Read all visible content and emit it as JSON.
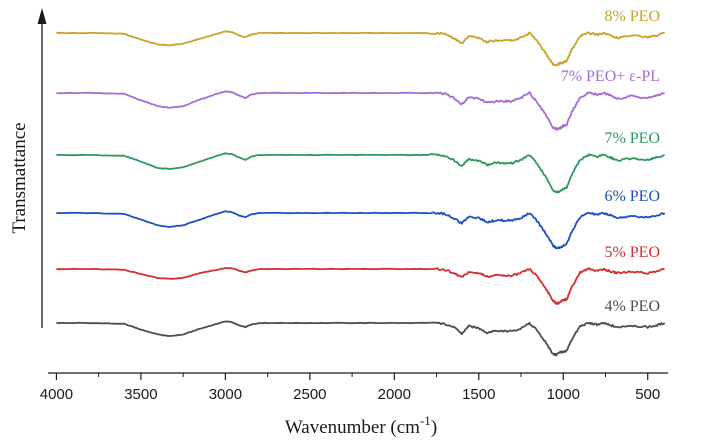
{
  "chart_data": {
    "type": "line",
    "xlabel": "Wavenumber (cm",
    "xlabel_sup": "-1",
    "xlabel_close": ")",
    "ylabel": "Transmattance",
    "x_reversed": true,
    "xlim": [
      4050,
      380
    ],
    "x_ticks": [
      4000,
      3500,
      3000,
      2500,
      2000,
      1500,
      1000,
      500
    ],
    "x_tick_labels": [
      "4000",
      "3500",
      "3000",
      "2500",
      "2000",
      "1500",
      "1000",
      "500"
    ],
    "y_ticks_shown": false,
    "grid": false,
    "legend": "inline labels at right end of each curve",
    "x": [
      4000,
      3800,
      3600,
      3500,
      3400,
      3330,
      3250,
      3150,
      3050,
      3000,
      2960,
      2920,
      2880,
      2850,
      2800,
      2700,
      2500,
      2300,
      2100,
      1900,
      1750,
      1700,
      1650,
      1600,
      1560,
      1500,
      1450,
      1400,
      1350,
      1300,
      1250,
      1200,
      1150,
      1100,
      1060,
      1040,
      1020,
      1000,
      980,
      950,
      900,
      850,
      800,
      760,
      720,
      680,
      600,
      500,
      450,
      400
    ],
    "series": [
      {
        "name": "4% PEO",
        "color": "#4d4d4d",
        "values": [
          0,
          0,
          -0.1,
          -0.8,
          -1.4,
          -1.6,
          -1.4,
          -0.7,
          -0.1,
          0.2,
          0.1,
          -0.3,
          -0.5,
          -0.2,
          0,
          0,
          0,
          0,
          0,
          0,
          0,
          -0.1,
          -0.5,
          -1.3,
          -0.4,
          -0.6,
          -1.2,
          -0.9,
          -1.0,
          -1.0,
          -0.7,
          0,
          -1.0,
          -2.5,
          -3.8,
          -3.9,
          -3.5,
          -3.6,
          -3.4,
          -2.0,
          -0.4,
          0,
          -0.2,
          0,
          -0.3,
          -0.5,
          -0.3,
          -0.5,
          -0.3,
          0
        ]
      },
      {
        "name": "5% PEO",
        "color": "#d42e2e",
        "values": [
          0,
          0,
          -0.1,
          -0.6,
          -1.1,
          -1.2,
          -1.1,
          -0.5,
          -0.1,
          0.1,
          0.1,
          -0.2,
          -0.4,
          -0.2,
          0,
          0,
          0,
          0,
          0,
          0,
          0,
          -0.1,
          -0.5,
          -1.0,
          -0.4,
          -0.5,
          -0.9,
          -0.8,
          -0.8,
          -0.8,
          -0.5,
          0,
          -1.0,
          -2.5,
          -3.9,
          -4.2,
          -4.1,
          -3.8,
          -3.7,
          -2.2,
          -0.4,
          0,
          -0.2,
          0,
          -0.3,
          -0.5,
          -0.3,
          -0.5,
          -0.3,
          0
        ]
      },
      {
        "name": "6% PEO",
        "color": "#1f4fc0",
        "values": [
          0,
          0,
          -0.1,
          -0.8,
          -1.5,
          -1.7,
          -1.5,
          -0.8,
          -0.1,
          0.2,
          0.1,
          -0.3,
          -0.5,
          -0.2,
          0,
          0,
          0,
          0,
          0,
          0,
          0,
          -0.1,
          -0.6,
          -1.3,
          -0.4,
          -0.6,
          -1.1,
          -0.9,
          -0.9,
          -0.9,
          -0.6,
          0,
          -1.1,
          -2.6,
          -4.0,
          -4.3,
          -4.2,
          -4.0,
          -3.8,
          -2.3,
          -0.5,
          0,
          -0.2,
          0,
          -0.3,
          -0.6,
          -0.4,
          -0.5,
          -0.3,
          0
        ]
      },
      {
        "name": "7% PEO",
        "color": "#2e9a5e",
        "values": [
          0,
          0,
          -0.1,
          -0.8,
          -1.6,
          -1.7,
          -1.5,
          -0.8,
          -0.1,
          0.2,
          0.1,
          -0.3,
          -0.6,
          -0.2,
          0,
          0,
          0,
          0,
          0,
          0,
          0,
          -0.1,
          -0.6,
          -1.4,
          -0.5,
          -0.7,
          -1.2,
          -0.9,
          -1.0,
          -1.0,
          -0.6,
          0,
          -1.2,
          -2.8,
          -4.3,
          -4.5,
          -4.4,
          -4.1,
          -4.0,
          -2.4,
          -0.6,
          0,
          -0.2,
          0,
          -0.3,
          -0.7,
          -0.4,
          -0.6,
          -0.3,
          0
        ]
      },
      {
        "name": "7% PEO+ ε-PL",
        "color": "#a76bd6",
        "values": [
          0,
          0,
          -0.1,
          -0.9,
          -1.6,
          -1.8,
          -1.6,
          -0.8,
          -0.1,
          0.2,
          0.1,
          -0.3,
          -0.6,
          -0.2,
          0,
          0,
          0,
          0,
          0,
          0,
          0,
          -0.1,
          -0.6,
          -1.4,
          -0.5,
          -0.7,
          -1.2,
          -1.0,
          -1.0,
          -1.0,
          -0.6,
          0,
          -1.2,
          -2.8,
          -4.2,
          -4.4,
          -4.3,
          -4.0,
          -3.9,
          -2.3,
          -0.6,
          0,
          -0.2,
          0,
          -0.3,
          -0.7,
          -0.4,
          -0.6,
          -0.3,
          0
        ]
      },
      {
        "name": "8% PEO",
        "color": "#c9a227",
        "values": [
          0,
          0,
          -0.1,
          -0.8,
          -1.4,
          -1.5,
          -1.3,
          -0.7,
          -0.1,
          0.2,
          0.1,
          -0.3,
          -0.5,
          -0.2,
          0,
          0,
          0,
          0,
          0,
          0,
          0,
          -0.1,
          -0.6,
          -1.3,
          -0.4,
          -0.6,
          -1.1,
          -0.9,
          -0.9,
          -0.9,
          -0.6,
          0,
          -1.1,
          -2.6,
          -3.8,
          -3.9,
          -3.7,
          -3.6,
          -3.4,
          -2.0,
          -0.4,
          0,
          -0.2,
          0,
          -0.3,
          -0.6,
          -0.3,
          -0.5,
          -0.3,
          0
        ]
      }
    ]
  }
}
